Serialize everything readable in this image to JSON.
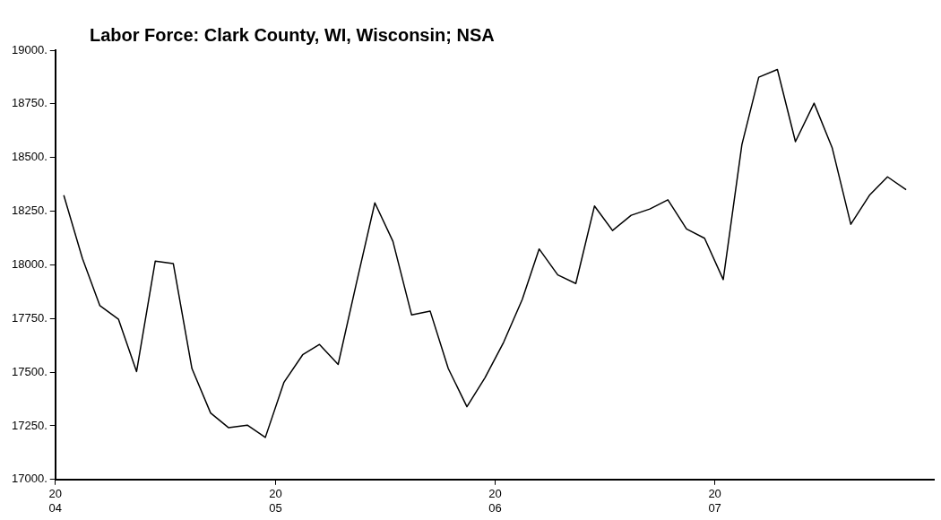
{
  "chart_data": {
    "type": "line",
    "title": "Labor Force: Clark County, WI, Wisconsin; NSA",
    "x": [
      "2004-01-15",
      "2004-02-15",
      "2004-03-15",
      "2004-04-15",
      "2004-05-15",
      "2004-06-15",
      "2004-07-15",
      "2004-08-15",
      "2004-09-15",
      "2004-10-15",
      "2004-11-15",
      "2004-12-15",
      "2005-01-15",
      "2005-02-15",
      "2005-03-15",
      "2005-04-15",
      "2005-05-15",
      "2005-06-15",
      "2005-07-15",
      "2005-08-15",
      "2005-09-15",
      "2005-10-15",
      "2005-11-15",
      "2005-12-15",
      "2006-01-15",
      "2006-02-15",
      "2006-03-15",
      "2006-04-15",
      "2006-05-15",
      "2006-06-15",
      "2006-07-15",
      "2006-08-15",
      "2006-09-15",
      "2006-10-15",
      "2006-11-15",
      "2006-12-15",
      "2007-01-15",
      "2007-02-15",
      "2007-03-15",
      "2007-04-15",
      "2007-05-15",
      "2007-06-15",
      "2007-07-15",
      "2007-08-15",
      "2007-09-15",
      "2007-10-15",
      "2007-11-15"
    ],
    "series": [
      {
        "color": "#000000",
        "values": [
          18324,
          18030,
          17810,
          17746,
          17503,
          18017,
          18006,
          17517,
          17310,
          17241,
          17253,
          17196,
          17453,
          17581,
          17629,
          17536,
          17910,
          18289,
          18110,
          17767,
          17784,
          17517,
          17339,
          17474,
          17639,
          17839,
          18074,
          17953,
          17913,
          18274,
          18160,
          18231,
          18260,
          18303,
          18167,
          18124,
          17931,
          18560,
          18874,
          18910,
          18574,
          18753,
          18546,
          18189,
          18324,
          18410,
          18350
        ]
      }
    ],
    "xlim": [
      "2004-01-01",
      "2007-12-31"
    ],
    "xticks": [
      {
        "value": "2004-01-01",
        "label": "20\n04"
      },
      {
        "value": "2005-01-01",
        "label": "20\n05"
      },
      {
        "value": "2006-01-01",
        "label": "20\n06"
      },
      {
        "value": "2007-01-01",
        "label": "20\n07"
      }
    ],
    "ylim": [
      17000,
      19000
    ],
    "yticks": [
      {
        "value": 17000,
        "label": "17000."
      },
      {
        "value": 17250,
        "label": "17250."
      },
      {
        "value": 17500,
        "label": "17500."
      },
      {
        "value": 17750,
        "label": "17750."
      },
      {
        "value": 18000,
        "label": "18000."
      },
      {
        "value": 18250,
        "label": "18250."
      },
      {
        "value": 18500,
        "label": "18500."
      },
      {
        "value": 18750,
        "label": "18750."
      },
      {
        "value": 19000,
        "label": "19000."
      }
    ],
    "grid": false,
    "legend": false,
    "marker": "none",
    "line_style": "solid"
  }
}
